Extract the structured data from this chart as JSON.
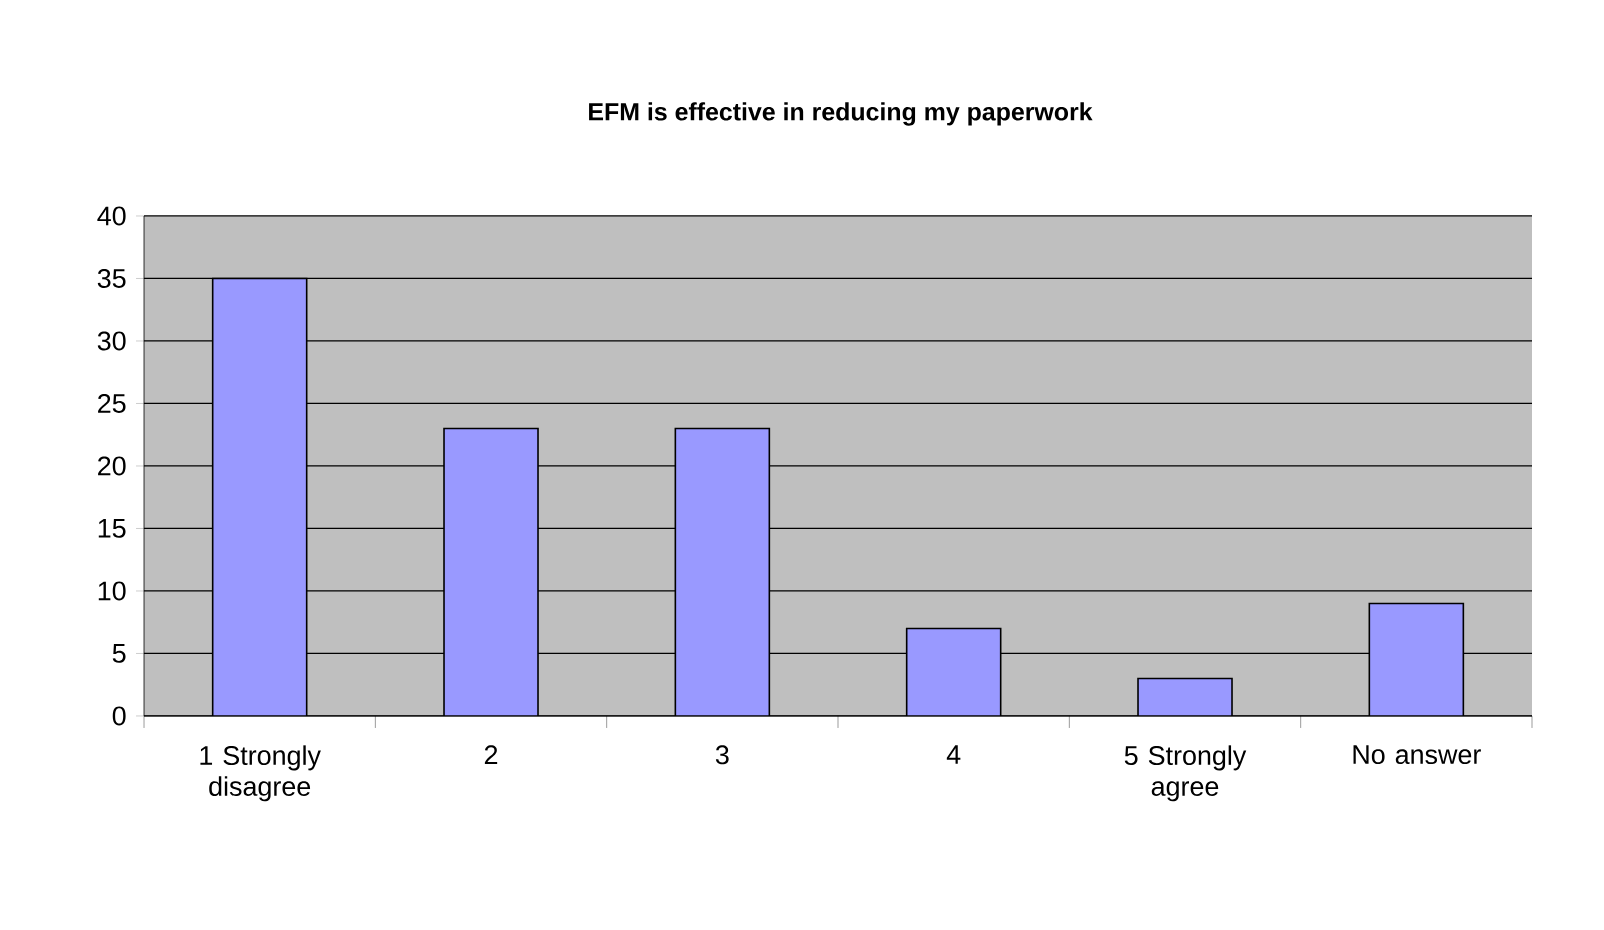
{
  "chart_data": {
    "type": "bar",
    "title": "EFM is effective in reducing my paperwork",
    "categories": [
      "1 Strongly disagree",
      "2",
      "3",
      "4",
      "5  Strongly agree",
      "No answer"
    ],
    "values": [
      35,
      23,
      23,
      7,
      3,
      9
    ],
    "color": "#9999ff",
    "ylim": [
      0,
      40
    ],
    "yticks": [
      0,
      5,
      10,
      15,
      20,
      25,
      30,
      35,
      40
    ],
    "grid": "y"
  }
}
